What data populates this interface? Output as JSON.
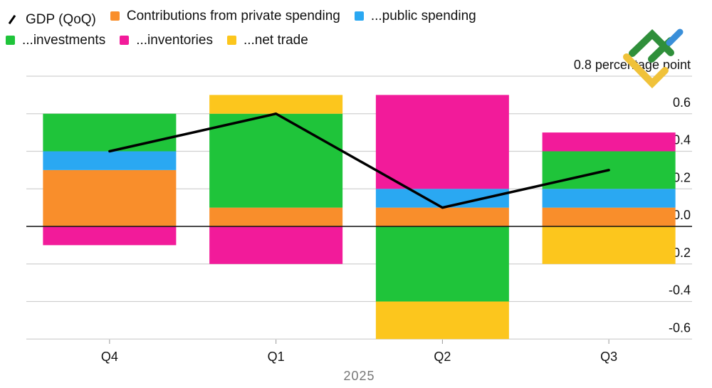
{
  "chart_data": {
    "type": "bar",
    "stacked": true,
    "categories": [
      "Q4",
      "Q1",
      "Q2",
      "Q3"
    ],
    "xlabel": "2025",
    "ylabel": "",
    "y_unit_label": "0.8 percentage point",
    "ylim": [
      -0.6,
      0.8
    ],
    "yticks": [
      "0.6",
      "0.4",
      "0.2",
      "0.0",
      "-0.2",
      "-0.4",
      "-0.6"
    ],
    "grid": true,
    "legend_position": "top-left",
    "series": [
      {
        "name": "Contributions from private spending",
        "color": "#f98e2b",
        "values": [
          0.3,
          0.1,
          0.1,
          0.1
        ]
      },
      {
        "name": "...public spending",
        "color": "#2aa8f2",
        "values": [
          0.1,
          0.0,
          0.1,
          0.1
        ]
      },
      {
        "name": "...investments",
        "color": "#1fc43a",
        "values": [
          0.2,
          0.5,
          -0.4,
          0.2
        ]
      },
      {
        "name": "...inventories",
        "color": "#f21b9a",
        "values": [
          -0.1,
          -0.2,
          0.5,
          0.1
        ]
      },
      {
        "name": "...net trade",
        "color": "#fcc61d",
        "values": [
          0.0,
          0.1,
          -0.2,
          -0.2
        ]
      }
    ],
    "line": {
      "name": "GDP (QoQ)",
      "color": "#000000",
      "values": [
        0.4,
        0.6,
        0.1,
        0.3
      ]
    }
  },
  "watermark": {
    "type": "logo",
    "colors": [
      "#2f8f3a",
      "#3a8fd9",
      "#f0c23a"
    ]
  }
}
